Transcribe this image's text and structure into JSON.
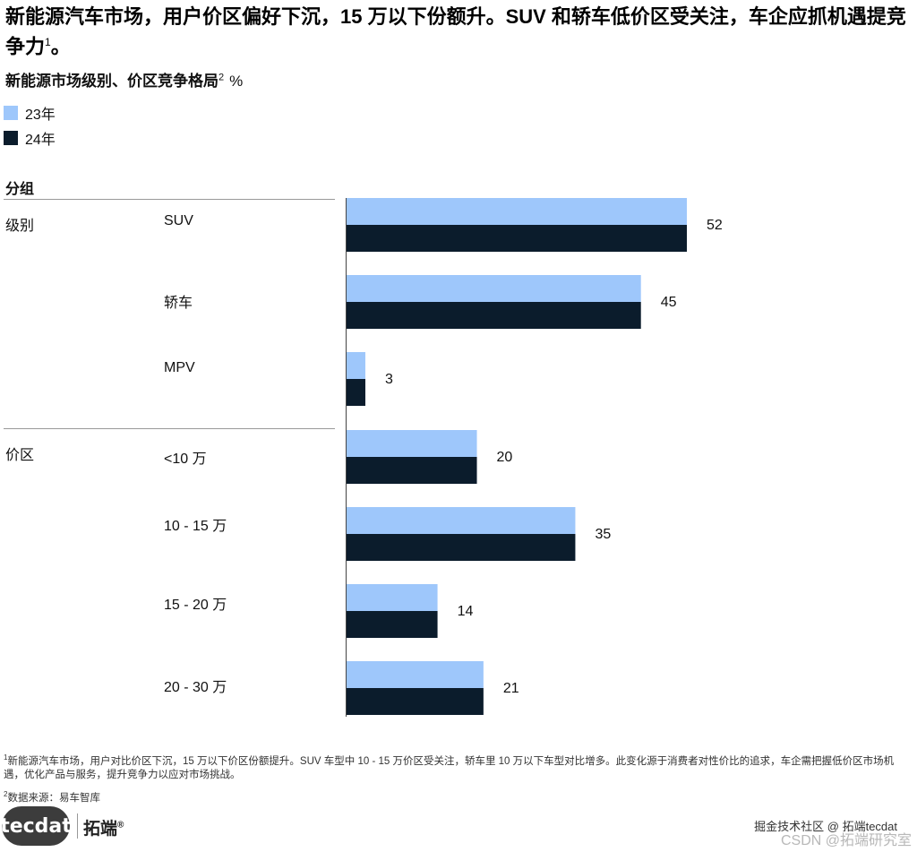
{
  "headline": {
    "text": "新能源汽车市场，用户价区偏好下沉，15 万以下份额升。SUV 和轿车低价区受关注，车企应抓机遇提竞争力",
    "sup": "1",
    "tail": "。"
  },
  "subtitle": {
    "text": "新能源市场级别、价区竞争格局",
    "sup": "2",
    "unit": "%"
  },
  "colors": {
    "y23": "#9ec7fb",
    "y24": "#0b1c2c",
    "axis": "#444444"
  },
  "chart_data": {
    "type": "bar",
    "orientation": "horizontal",
    "group_header": "分组",
    "groups": [
      {
        "label": "级别",
        "categories": [
          "SUV",
          "轿车",
          "MPV"
        ]
      },
      {
        "label": "价区",
        "categories": [
          "<10 万",
          "10 - 15 万",
          "15 - 20 万",
          "20 - 30 万"
        ]
      }
    ],
    "categories": [
      "SUV",
      "轿车",
      "MPV",
      "<10 万",
      "10 - 15 万",
      "15 - 20 万",
      "20 - 30 万"
    ],
    "series": [
      {
        "name": "23年",
        "values": [
          52,
          45,
          3,
          20,
          35,
          14,
          21
        ]
      },
      {
        "name": "24年",
        "values": [
          52,
          45,
          3,
          20,
          35,
          14,
          21
        ]
      }
    ],
    "data_labels": [
      52,
      45,
      3,
      20,
      35,
      14,
      21
    ],
    "ylabel": "%",
    "xlim": [
      0,
      60
    ]
  },
  "footnotes": [
    {
      "sup": "1",
      "text": "新能源汽车市场，用户对比价区下沉，15 万以下价区份额提升。SUV 车型中 10 - 15 万价区受关注，轿车里 10 万以下车型对比增多。此变化源于消费者对性价比的追求，车企需把握低价区市场机遇，优化产品与服务，提升竞争力以应对市场挑战。"
    },
    {
      "sup": "2",
      "text": "数据来源：易车智库"
    }
  ],
  "branding": {
    "logo": "tecdat",
    "name": "拓端",
    "reg": "®"
  },
  "watermarks": [
    "掘金技术社区 @ 拓端tecdat",
    "CSDN @拓端研究室"
  ]
}
